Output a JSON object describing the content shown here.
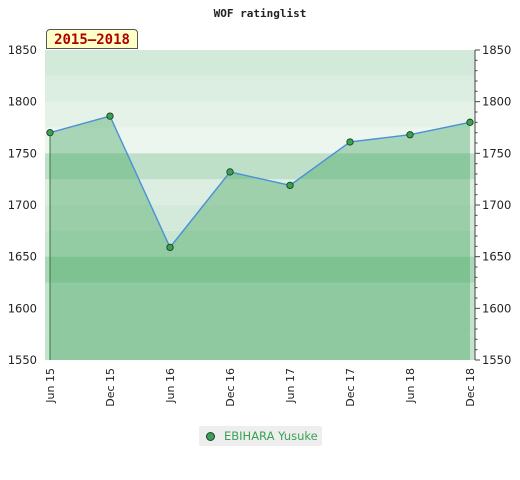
{
  "chart_data": {
    "type": "line",
    "title": "WOF ratinglist",
    "period_label": "2015–2018",
    "categories": [
      "Jun 15",
      "Dec 15",
      "Jun 16",
      "Dec 16",
      "Jun 17",
      "Dec 17",
      "Jun 18",
      "Dec 18"
    ],
    "series": [
      {
        "name": "EBIHARA Yusuke",
        "values": [
          1770,
          1786,
          1659,
          1732,
          1719,
          1761,
          1768,
          1780
        ]
      }
    ],
    "yticks": [
      1550,
      1600,
      1650,
      1700,
      1750,
      1800,
      1850
    ],
    "ylim": [
      1550,
      1850
    ],
    "y_axis_both_sides": true,
    "legend_position": "bottom",
    "colors": {
      "line": "#4a90d9",
      "marker_fill": "#3aa157",
      "area_fill": "#3aa157",
      "band_light": "#b4dcc0",
      "band_dark": "#78c08e"
    }
  }
}
